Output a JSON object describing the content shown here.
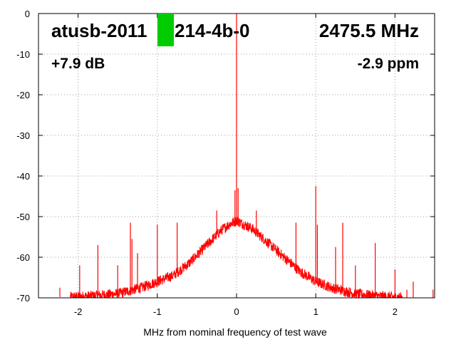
{
  "chart_data": {
    "type": "line",
    "title": "",
    "xlabel": "MHz from nominal frequency of test wave",
    "ylabel": "",
    "xlim": [
      -2.5,
      2.5
    ],
    "ylim": [
      -70,
      0
    ],
    "x_ticks": [
      -2,
      -1,
      0,
      1,
      2
    ],
    "y_ticks": [
      0,
      -10,
      -20,
      -30,
      -40,
      -50,
      -60,
      -70
    ],
    "grid": true,
    "legend": "none",
    "series_color": "#ff0000",
    "marker_color": "#00cc00",
    "annotations": {
      "device": "atusb-2011",
      "device_suffix": "214-4b-0",
      "frequency": "2475.5 MHz",
      "gain": "+7.9 dB",
      "offset": "-2.9 ppm"
    },
    "noise_envelope": {
      "x": [
        -2.1,
        -1.8,
        -1.5,
        -1.2,
        -1.0,
        -0.8,
        -0.6,
        -0.4,
        -0.2,
        -0.1,
        0.0,
        0.1,
        0.2,
        0.4,
        0.6,
        0.8,
        1.0,
        1.2,
        1.5,
        1.8,
        2.1
      ],
      "y": [
        -69.8,
        -69.5,
        -69.0,
        -67.5,
        -66.0,
        -64.5,
        -61.5,
        -57.5,
        -53.5,
        -52.0,
        -51.0,
        -52.0,
        -53.0,
        -56.5,
        -60.0,
        -63.5,
        -66.0,
        -67.5,
        -69.0,
        -69.6,
        -69.9
      ]
    },
    "spurs": [
      {
        "x": -2.23,
        "y": -67.5
      },
      {
        "x": -1.98,
        "y": -62.0
      },
      {
        "x": -1.75,
        "y": -57.0
      },
      {
        "x": -1.5,
        "y": -62.0
      },
      {
        "x": -1.34,
        "y": -51.5
      },
      {
        "x": -1.32,
        "y": -55.5
      },
      {
        "x": -1.25,
        "y": -59.0
      },
      {
        "x": -1.0,
        "y": -52.0
      },
      {
        "x": -0.75,
        "y": -51.5
      },
      {
        "x": -0.25,
        "y": -48.5
      },
      {
        "x": -0.02,
        "y": -43.5
      },
      {
        "x": 0.0,
        "y": 0.0
      },
      {
        "x": 0.02,
        "y": -43.0
      },
      {
        "x": 0.25,
        "y": -48.5
      },
      {
        "x": 0.75,
        "y": -51.5
      },
      {
        "x": 1.0,
        "y": -42.5
      },
      {
        "x": 1.02,
        "y": -52.0
      },
      {
        "x": 1.25,
        "y": -57.5
      },
      {
        "x": 1.34,
        "y": -51.5
      },
      {
        "x": 1.5,
        "y": -62.0
      },
      {
        "x": 1.75,
        "y": -56.5
      },
      {
        "x": 2.0,
        "y": -63.0
      },
      {
        "x": 2.15,
        "y": -68.0
      },
      {
        "x": 2.23,
        "y": -66.0
      },
      {
        "x": 2.48,
        "y": -68.0
      }
    ]
  }
}
